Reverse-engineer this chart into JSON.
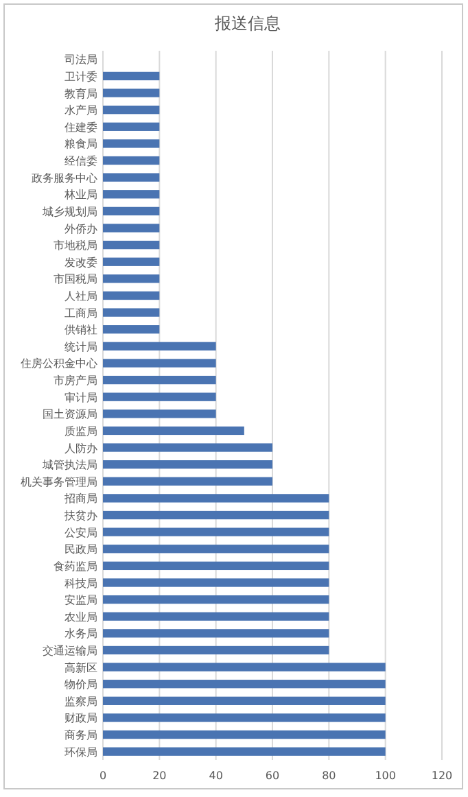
{
  "chart_data": {
    "type": "bar",
    "orientation": "horizontal",
    "title": "报送信息",
    "categories": [
      "司法局",
      "卫计委",
      "教育局",
      "水产局",
      "住建委",
      "粮食局",
      "经信委",
      "政务服务中心",
      "林业局",
      "城乡规划局",
      "外侨办",
      "市地税局",
      "发改委",
      "市国税局",
      "人社局",
      "工商局",
      "供销社",
      "统计局",
      "住房公积金中心",
      "市房产局",
      "审计局",
      "国土资源局",
      "质监局",
      "人防办",
      "城管执法局",
      "机关事务管理局",
      "招商局",
      "扶贫办",
      "公安局",
      "民政局",
      "食药监局",
      "科技局",
      "安监局",
      "农业局",
      "水务局",
      "交通运输局",
      "高新区",
      "物价局",
      "监察局",
      "财政局",
      "商务局",
      "环保局"
    ],
    "values": [
      0,
      20,
      20,
      20,
      20,
      20,
      20,
      20,
      20,
      20,
      20,
      20,
      20,
      20,
      20,
      20,
      20,
      40,
      40,
      40,
      40,
      40,
      50,
      60,
      60,
      60,
      80,
      80,
      80,
      80,
      80,
      80,
      80,
      80,
      80,
      80,
      100,
      100,
      100,
      100,
      100,
      100
    ],
    "color": "#4a74b2",
    "xlim": [
      0,
      120
    ],
    "xticks": [
      0,
      20,
      40,
      60,
      80,
      100,
      120
    ],
    "grid": "x"
  }
}
